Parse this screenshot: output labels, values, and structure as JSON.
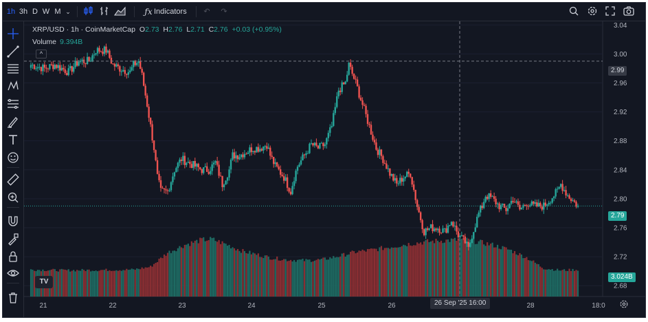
{
  "toolbar": {
    "intervals": [
      "1h",
      "3h",
      "D",
      "W",
      "M"
    ],
    "active_interval": "1h",
    "indicators_label": "Indicators"
  },
  "legend": {
    "symbol": "XRP/USD · 1h · CoinMarketCap",
    "open_label": "O",
    "open": "2.73",
    "high_label": "H",
    "high": "2.76",
    "low_label": "L",
    "low": "2.71",
    "close_label": "C",
    "close": "2.76",
    "change": "+0.03 (+0.95%)",
    "volume_label": "Volume",
    "volume_value": "9.394B"
  },
  "price_axis": {
    "ticks": [
      "3.04",
      "3.00",
      "2.96",
      "2.92",
      "2.88",
      "2.84",
      "2.80",
      "2.76",
      "2.72",
      "2.68"
    ],
    "crosshair_price": "2.99",
    "last_price": "2.79",
    "volume_badge": "3.024B"
  },
  "time_axis": {
    "ticks": [
      "21",
      "22",
      "23",
      "24",
      "25",
      "26",
      "28",
      "18:0"
    ],
    "crosshair_time": "26 Sep '25   16:00"
  },
  "logo_text": "TV",
  "colors": {
    "up": "#26a69a",
    "down": "#ef5350",
    "background": "#131722",
    "accent": "#2962ff"
  },
  "left_tools": [
    "crosshair-icon",
    "trend-line-icon",
    "fib-icon",
    "pattern-icon",
    "projection-icon",
    "brush-icon",
    "text-icon",
    "emoji-icon",
    "ruler-icon",
    "zoom-in-icon",
    "magnet-icon",
    "lock-draw-icon",
    "lock-icon",
    "eye-icon",
    "trash-icon"
  ],
  "chart_data": {
    "type": "candlestick",
    "y_range": [
      2.665,
      3.045
    ],
    "y_ticks": [
      3.04,
      3.0,
      2.96,
      2.92,
      2.88,
      2.84,
      2.8,
      2.76,
      2.72,
      2.68
    ],
    "x_ticks": [
      "21",
      "22",
      "23",
      "24",
      "25",
      "26",
      "28",
      "18:0"
    ],
    "crosshair_price": 2.99,
    "last_price": 2.79,
    "keypoints": [
      [
        0,
        2.985
      ],
      [
        8,
        2.98
      ],
      [
        14,
        2.985
      ],
      [
        22,
        2.975
      ],
      [
        28,
        2.99
      ],
      [
        34,
        2.99
      ],
      [
        38,
        3.005
      ],
      [
        44,
        3.005
      ],
      [
        48,
        2.985
      ],
      [
        52,
        2.98
      ],
      [
        58,
        2.975
      ],
      [
        60,
        2.985
      ],
      [
        63,
        2.99
      ],
      [
        65,
        2.97
      ],
      [
        68,
        2.93
      ],
      [
        70,
        2.9
      ],
      [
        72,
        2.87
      ],
      [
        74,
        2.83
      ],
      [
        76,
        2.81
      ],
      [
        78,
        2.81
      ],
      [
        80,
        2.81
      ],
      [
        84,
        2.84
      ],
      [
        88,
        2.855
      ],
      [
        92,
        2.85
      ],
      [
        96,
        2.845
      ],
      [
        100,
        2.84
      ],
      [
        104,
        2.84
      ],
      [
        108,
        2.85
      ],
      [
        112,
        2.82
      ],
      [
        116,
        2.84
      ],
      [
        118,
        2.86
      ],
      [
        122,
        2.86
      ],
      [
        126,
        2.865
      ],
      [
        130,
        2.87
      ],
      [
        134,
        2.87
      ],
      [
        138,
        2.875
      ],
      [
        140,
        2.86
      ],
      [
        143,
        2.845
      ],
      [
        148,
        2.83
      ],
      [
        152,
        2.81
      ],
      [
        154,
        2.83
      ],
      [
        156,
        2.845
      ],
      [
        160,
        2.86
      ],
      [
        164,
        2.875
      ],
      [
        168,
        2.87
      ],
      [
        172,
        2.875
      ],
      [
        176,
        2.9
      ],
      [
        180,
        2.95
      ],
      [
        184,
        2.96
      ],
      [
        186,
        2.985
      ],
      [
        190,
        2.96
      ],
      [
        194,
        2.93
      ],
      [
        198,
        2.9
      ],
      [
        202,
        2.87
      ],
      [
        206,
        2.855
      ],
      [
        210,
        2.835
      ],
      [
        214,
        2.82
      ],
      [
        218,
        2.83
      ],
      [
        222,
        2.835
      ],
      [
        226,
        2.79
      ],
      [
        230,
        2.755
      ],
      [
        234,
        2.76
      ],
      [
        238,
        2.76
      ],
      [
        242,
        2.755
      ],
      [
        246,
        2.77
      ],
      [
        250,
        2.75
      ],
      [
        254,
        2.74
      ],
      [
        256,
        2.73
      ],
      [
        258,
        2.75
      ],
      [
        260,
        2.765
      ],
      [
        262,
        2.78
      ],
      [
        264,
        2.79
      ],
      [
        266,
        2.805
      ],
      [
        270,
        2.8
      ],
      [
        274,
        2.79
      ],
      [
        278,
        2.785
      ],
      [
        282,
        2.8
      ],
      [
        286,
        2.785
      ],
      [
        290,
        2.795
      ],
      [
        294,
        2.79
      ],
      [
        300,
        2.79
      ],
      [
        304,
        2.8
      ],
      [
        308,
        2.81
      ],
      [
        310,
        2.82
      ],
      [
        314,
        2.805
      ],
      [
        318,
        2.795
      ],
      [
        320,
        2.79
      ]
    ],
    "volume_keypoints": [
      [
        0,
        0.38
      ],
      [
        20,
        0.37
      ],
      [
        60,
        0.38
      ],
      [
        70,
        0.42
      ],
      [
        80,
        0.62
      ],
      [
        90,
        0.73
      ],
      [
        100,
        0.8
      ],
      [
        106,
        0.81
      ],
      [
        114,
        0.74
      ],
      [
        124,
        0.64
      ],
      [
        140,
        0.55
      ],
      [
        150,
        0.52
      ],
      [
        160,
        0.51
      ],
      [
        170,
        0.52
      ],
      [
        180,
        0.57
      ],
      [
        190,
        0.63
      ],
      [
        200,
        0.66
      ],
      [
        210,
        0.7
      ],
      [
        220,
        0.74
      ],
      [
        230,
        0.77
      ],
      [
        240,
        0.79
      ],
      [
        250,
        0.8
      ],
      [
        260,
        0.78
      ],
      [
        270,
        0.73
      ],
      [
        280,
        0.66
      ],
      [
        290,
        0.55
      ],
      [
        300,
        0.4
      ],
      [
        310,
        0.37
      ],
      [
        320,
        0.38
      ]
    ]
  }
}
